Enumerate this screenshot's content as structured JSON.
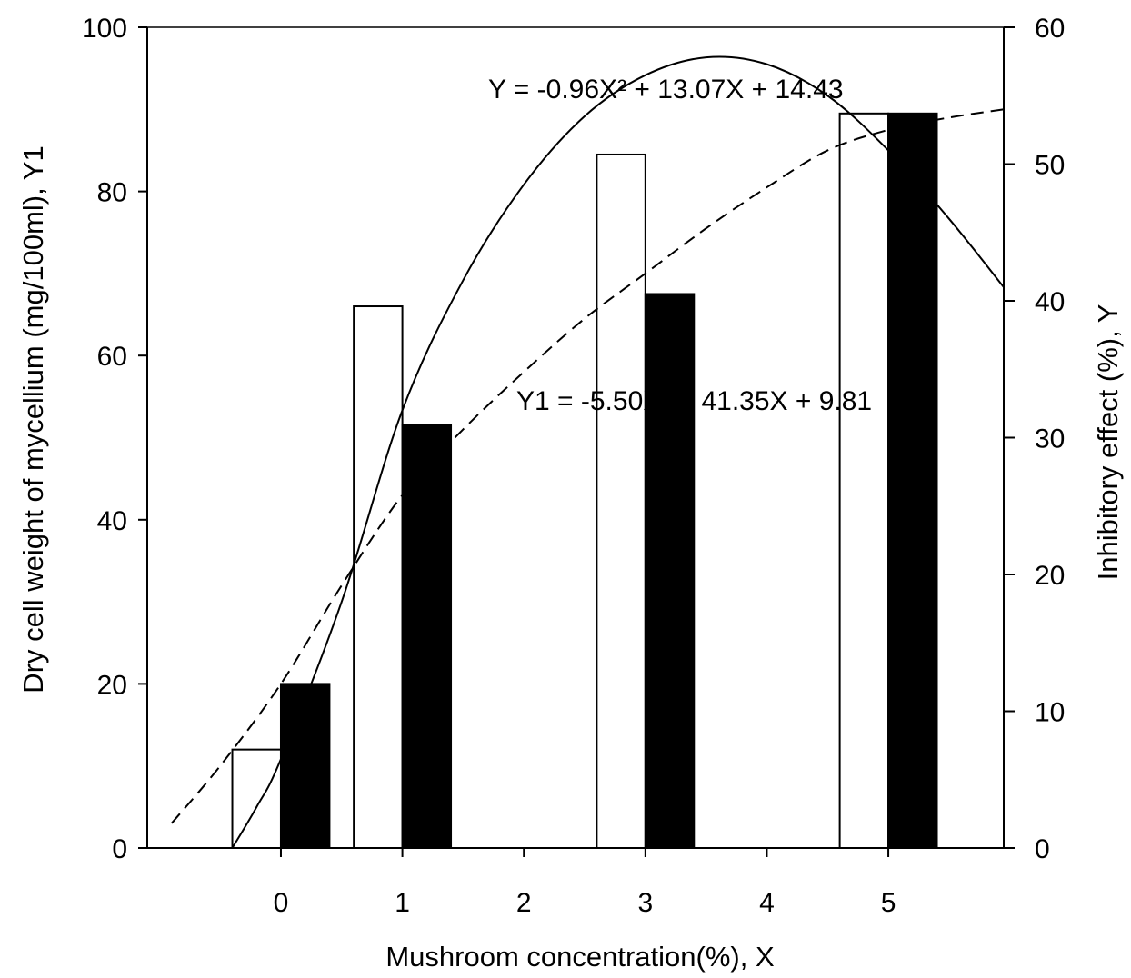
{
  "chart_data": {
    "type": "bar",
    "xlabel": "Mushroom concentration(%), X",
    "ylabel_left": "Dry cell weight of mycellium (mg/100ml), Y1",
    "ylabel_right": "Inhibitory effect (%), Y",
    "x_ticks": [
      "0",
      "1",
      "2",
      "3",
      "4",
      "5"
    ],
    "xlim": [
      -1.1,
      5.95
    ],
    "ylim_left": [
      0,
      100
    ],
    "ylim_right": [
      0,
      60
    ],
    "y_ticks_left": [
      "0",
      "20",
      "40",
      "60",
      "80",
      "100"
    ],
    "y_ticks_right": [
      "0",
      "10",
      "20",
      "30",
      "40",
      "50",
      "60"
    ],
    "grid": false,
    "legend": "none",
    "categories": [
      0,
      1,
      3,
      5
    ],
    "series": [
      {
        "style": "white-bar",
        "axis": "left",
        "values": [
          12,
          66,
          84.5,
          89.5
        ]
      },
      {
        "style": "black-bar",
        "axis": "left",
        "values": [
          20,
          51.5,
          67.5,
          89.5
        ]
      }
    ],
    "curves": [
      {
        "style": "solid",
        "axis": "right",
        "equation": "Y = -0.96X² + 13.07X + 14.43",
        "points": [
          [
            -0.4,
            0
          ],
          [
            -0.2,
            3
          ],
          [
            0,
            6.5
          ],
          [
            0.5,
            18
          ],
          [
            1,
            32
          ],
          [
            1.5,
            41.5
          ],
          [
            2,
            48.5
          ],
          [
            2.5,
            53.5
          ],
          [
            3,
            56.5
          ],
          [
            3.5,
            57.8
          ],
          [
            4,
            57.3
          ],
          [
            4.5,
            55
          ],
          [
            5,
            51
          ],
          [
            5.5,
            46
          ],
          [
            5.95,
            41
          ]
        ]
      },
      {
        "style": "dashed",
        "axis": "left",
        "equation": "Y1 = -5.50X² + 41.35X + 9.81",
        "points": [
          [
            -0.9,
            3
          ],
          [
            -0.5,
            10
          ],
          [
            0,
            20
          ],
          [
            0.5,
            32
          ],
          [
            1,
            43
          ],
          [
            1.5,
            51
          ],
          [
            2,
            58
          ],
          [
            2.5,
            64.5
          ],
          [
            3,
            70
          ],
          [
            3.5,
            75.5
          ],
          [
            4,
            80.5
          ],
          [
            4.5,
            85
          ],
          [
            5,
            87.5
          ],
          [
            5.5,
            89
          ],
          [
            5.95,
            90
          ]
        ]
      }
    ],
    "equations": [
      "Y = -0.96X² + 13.07X + 14.43",
      "Y1 = -5.50X² + 41.35X + 9.81"
    ]
  }
}
